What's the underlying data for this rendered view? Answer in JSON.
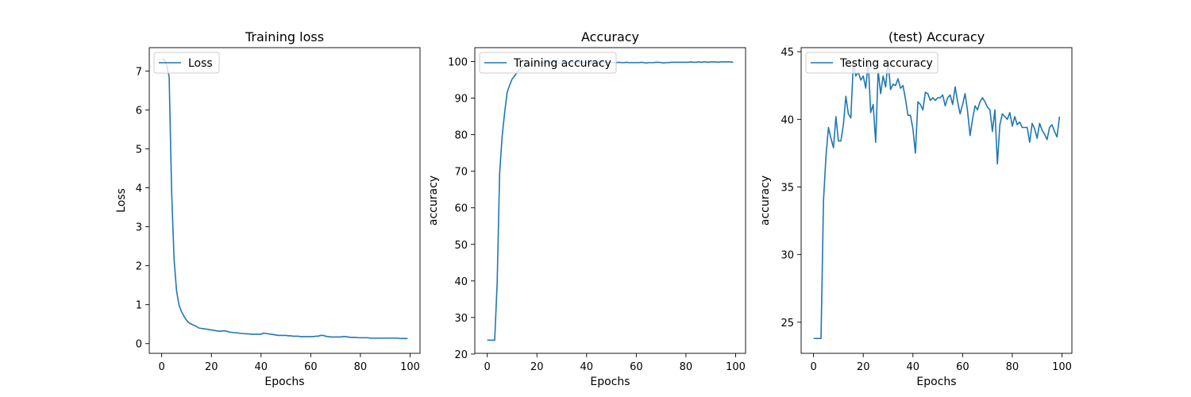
{
  "chart_data": [
    {
      "type": "line",
      "title": "Training loss",
      "xlabel": "Epochs",
      "ylabel": "Loss",
      "xlim": [
        -5,
        104
      ],
      "ylim": [
        -0.25,
        7.6
      ],
      "xticks": [
        0,
        20,
        40,
        60,
        80,
        100
      ],
      "yticks": [
        0,
        1,
        2,
        3,
        4,
        5,
        6,
        7
      ],
      "legend_position": "upper-left",
      "grid": false,
      "series": [
        {
          "name": "Loss",
          "color": "#1f77b4",
          "x": [
            0,
            1,
            2,
            3,
            4,
            5,
            6,
            7,
            8,
            9,
            10,
            11,
            12,
            13,
            14,
            15,
            16,
            17,
            18,
            19,
            20,
            21,
            22,
            23,
            24,
            25,
            26,
            27,
            28,
            29,
            30,
            31,
            32,
            33,
            34,
            35,
            36,
            37,
            38,
            39,
            40,
            41,
            42,
            43,
            44,
            45,
            46,
            47,
            48,
            49,
            50,
            51,
            52,
            53,
            54,
            55,
            56,
            57,
            58,
            59,
            60,
            61,
            62,
            63,
            64,
            65,
            66,
            67,
            68,
            69,
            70,
            71,
            72,
            73,
            74,
            75,
            76,
            77,
            78,
            79,
            80,
            81,
            82,
            83,
            84,
            85,
            86,
            87,
            88,
            89,
            90,
            91,
            92,
            93,
            94,
            95,
            96,
            97,
            98,
            99
          ],
          "y": [
            7.3,
            7.3,
            7.15,
            6.85,
            3.9,
            2.15,
            1.35,
            0.98,
            0.82,
            0.7,
            0.6,
            0.53,
            0.5,
            0.47,
            0.44,
            0.4,
            0.39,
            0.38,
            0.37,
            0.36,
            0.35,
            0.34,
            0.33,
            0.32,
            0.32,
            0.33,
            0.32,
            0.3,
            0.29,
            0.28,
            0.28,
            0.27,
            0.26,
            0.26,
            0.25,
            0.25,
            0.24,
            0.24,
            0.24,
            0.24,
            0.24,
            0.27,
            0.26,
            0.25,
            0.24,
            0.23,
            0.22,
            0.21,
            0.21,
            0.21,
            0.21,
            0.2,
            0.2,
            0.19,
            0.19,
            0.19,
            0.18,
            0.18,
            0.18,
            0.18,
            0.18,
            0.18,
            0.19,
            0.19,
            0.21,
            0.21,
            0.19,
            0.18,
            0.17,
            0.17,
            0.17,
            0.17,
            0.17,
            0.18,
            0.18,
            0.17,
            0.16,
            0.16,
            0.16,
            0.15,
            0.15,
            0.15,
            0.15,
            0.15,
            0.14,
            0.14,
            0.14,
            0.14,
            0.14,
            0.14,
            0.14,
            0.14,
            0.14,
            0.14,
            0.14,
            0.14,
            0.13,
            0.13,
            0.13,
            0.13
          ]
        }
      ]
    },
    {
      "type": "line",
      "title": "Accuracy",
      "xlabel": "Epochs",
      "ylabel": "accuracy",
      "xlim": [
        -5,
        104
      ],
      "ylim": [
        20.2,
        103.8
      ],
      "xticks": [
        0,
        20,
        40,
        60,
        80,
        100
      ],
      "yticks": [
        20,
        30,
        40,
        50,
        60,
        70,
        80,
        90,
        100
      ],
      "legend_position": "upper-left",
      "grid": false,
      "series": [
        {
          "name": "Training accuracy",
          "color": "#1f77b4",
          "x": [
            0,
            1,
            2,
            3,
            4,
            5,
            6,
            7,
            8,
            9,
            10,
            11,
            12,
            13,
            14,
            15,
            16,
            17,
            18,
            19,
            20,
            21,
            22,
            23,
            24,
            25,
            26,
            27,
            28,
            29,
            30,
            31,
            32,
            33,
            34,
            35,
            36,
            37,
            38,
            39,
            40,
            41,
            42,
            43,
            44,
            45,
            46,
            47,
            48,
            49,
            50,
            51,
            52,
            53,
            54,
            55,
            56,
            57,
            58,
            59,
            60,
            61,
            62,
            63,
            64,
            65,
            66,
            67,
            68,
            69,
            70,
            71,
            72,
            73,
            74,
            75,
            76,
            77,
            78,
            79,
            80,
            81,
            82,
            83,
            84,
            85,
            86,
            87,
            88,
            89,
            90,
            91,
            92,
            93,
            94,
            95,
            96,
            97,
            98,
            99
          ],
          "y": [
            23.8,
            23.8,
            23.8,
            23.8,
            39.5,
            69.5,
            79.5,
            86.0,
            91.5,
            93.5,
            95.2,
            96.0,
            97.1,
            97.8,
            98.3,
            98.8,
            99.0,
            99.2,
            99.3,
            99.4,
            99.5,
            99.5,
            99.6,
            99.6,
            99.6,
            99.6,
            99.6,
            99.7,
            99.7,
            99.6,
            99.7,
            99.7,
            99.6,
            99.7,
            99.7,
            99.7,
            99.6,
            99.7,
            99.7,
            99.7,
            99.7,
            99.5,
            99.6,
            99.7,
            99.7,
            99.7,
            99.7,
            99.7,
            99.7,
            99.7,
            99.7,
            99.7,
            99.7,
            99.8,
            99.7,
            99.7,
            99.8,
            99.7,
            99.7,
            99.7,
            99.7,
            99.7,
            99.8,
            99.7,
            99.6,
            99.7,
            99.7,
            99.7,
            99.8,
            99.8,
            99.7,
            99.6,
            99.7,
            99.7,
            99.8,
            99.8,
            99.8,
            99.8,
            99.8,
            99.8,
            99.8,
            99.8,
            99.9,
            99.8,
            99.8,
            99.9,
            99.8,
            99.9,
            99.9,
            99.8,
            99.9,
            99.9,
            99.9,
            99.8,
            99.9,
            99.9,
            99.9,
            99.9,
            99.9,
            99.8
          ]
        }
      ]
    },
    {
      "type": "line",
      "title": "(test) Accuracy",
      "xlabel": "Epochs",
      "ylabel": "accuracy",
      "xlim": [
        -5,
        104
      ],
      "ylim": [
        22.7,
        45.3
      ],
      "xticks": [
        0,
        20,
        40,
        60,
        80,
        100
      ],
      "yticks": [
        25,
        30,
        35,
        40,
        45
      ],
      "legend_position": "upper-left",
      "grid": false,
      "series": [
        {
          "name": "Testing accuracy",
          "color": "#1f77b4",
          "x": [
            0,
            1,
            2,
            3,
            4,
            5,
            6,
            7,
            8,
            9,
            10,
            11,
            12,
            13,
            14,
            15,
            16,
            17,
            18,
            19,
            20,
            21,
            22,
            23,
            24,
            25,
            26,
            27,
            28,
            29,
            30,
            31,
            32,
            33,
            34,
            35,
            36,
            37,
            38,
            39,
            40,
            41,
            42,
            43,
            44,
            45,
            46,
            47,
            48,
            49,
            50,
            51,
            52,
            53,
            54,
            55,
            56,
            57,
            58,
            59,
            60,
            61,
            62,
            63,
            64,
            65,
            66,
            67,
            68,
            69,
            70,
            71,
            72,
            73,
            74,
            75,
            76,
            77,
            78,
            79,
            80,
            81,
            82,
            83,
            84,
            85,
            86,
            87,
            88,
            89,
            90,
            91,
            92,
            93,
            94,
            95,
            96,
            97,
            98,
            99
          ],
          "y": [
            23.8,
            23.8,
            23.8,
            23.8,
            34.0,
            37.3,
            39.4,
            38.6,
            37.9,
            40.2,
            38.4,
            38.4,
            39.6,
            41.7,
            40.4,
            40.1,
            44.1,
            43.2,
            43.5,
            42.9,
            43.2,
            42.3,
            44.3,
            40.5,
            41.1,
            38.3,
            43.6,
            41.9,
            43.2,
            42.4,
            44.3,
            42.2,
            42.6,
            42.5,
            43.0,
            42.3,
            42.5,
            41.5,
            40.3,
            40.3,
            39.3,
            37.5,
            41.3,
            41.1,
            40.7,
            42.0,
            41.9,
            41.4,
            41.6,
            41.4,
            41.6,
            41.6,
            41.8,
            41.0,
            41.6,
            41.8,
            41.1,
            42.4,
            41.3,
            40.4,
            41.1,
            41.9,
            40.6,
            38.8,
            40.0,
            41.0,
            40.7,
            41.3,
            41.6,
            41.3,
            40.9,
            40.7,
            39.1,
            40.7,
            36.7,
            39.6,
            40.4,
            40.2,
            40.0,
            40.5,
            39.5,
            40.2,
            39.6,
            39.8,
            39.4,
            39.4,
            39.4,
            38.3,
            39.7,
            39.3,
            38.6,
            39.7,
            39.2,
            38.9,
            38.5,
            39.4,
            39.6,
            39.1,
            38.7,
            40.2
          ]
        }
      ]
    }
  ]
}
